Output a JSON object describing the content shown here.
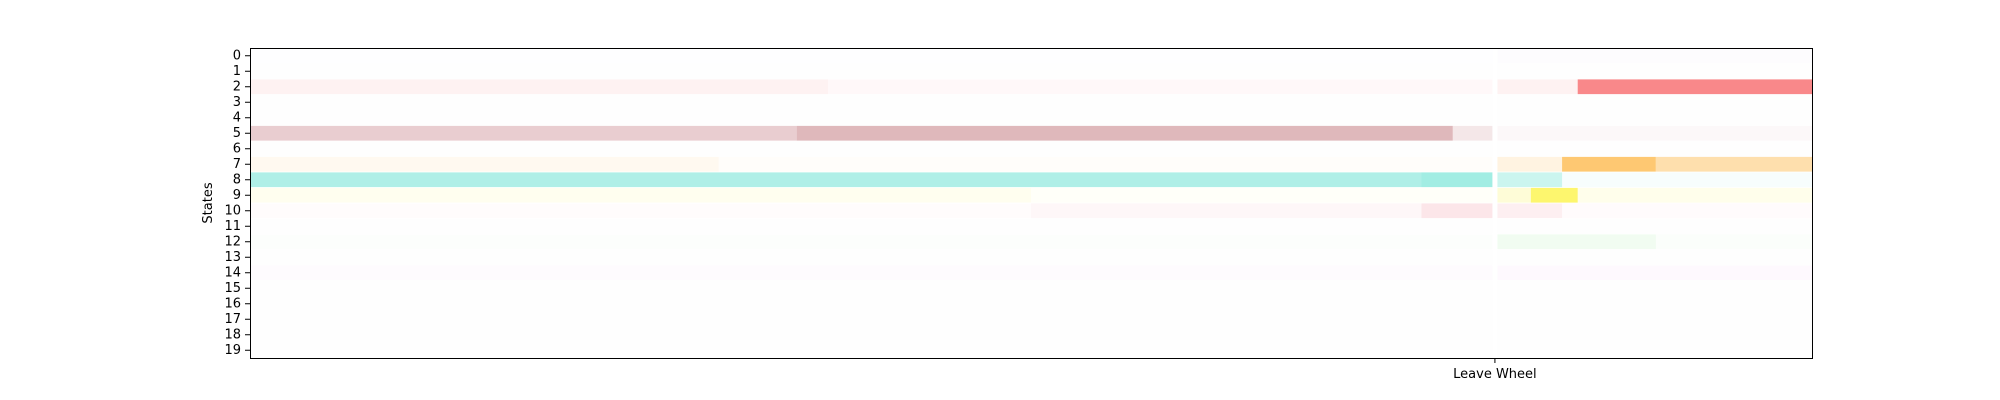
{
  "chart_data": {
    "type": "heatmap",
    "title": "",
    "xlabel": "",
    "ylabel": "States",
    "y_categories": [
      "0",
      "1",
      "2",
      "3",
      "4",
      "5",
      "6",
      "7",
      "8",
      "9",
      "10",
      "11",
      "12",
      "13",
      "14",
      "15",
      "16",
      "17",
      "18",
      "19"
    ],
    "x_ticks": [
      {
        "label": "Leave Wheel",
        "position": 0.797
      }
    ],
    "x_range": [
      0,
      1
    ],
    "event_line": {
      "label": "Leave Wheel",
      "position": 0.797,
      "color": "#ffffff"
    },
    "grid": false,
    "legend": "none",
    "rows": [
      {
        "state": 0,
        "color": "#d8d0ee",
        "segments": [
          {
            "start": 0.0,
            "end": 0.797,
            "intensity": 0.02
          },
          {
            "start": 0.797,
            "end": 1.0,
            "intensity": 0.06
          }
        ]
      },
      {
        "state": 1,
        "color": "#e0e0e0",
        "segments": [
          {
            "start": 0.0,
            "end": 1.0,
            "intensity": 0.02
          }
        ]
      },
      {
        "state": 2,
        "color": "#f87e80",
        "segments": [
          {
            "start": 0.0,
            "end": 0.37,
            "intensity": 0.1
          },
          {
            "start": 0.37,
            "end": 0.797,
            "intensity": 0.05
          },
          {
            "start": 0.797,
            "end": 0.85,
            "intensity": 0.1
          },
          {
            "start": 0.85,
            "end": 1.0,
            "intensity": 0.92
          }
        ]
      },
      {
        "state": 3,
        "color": "#e0e0e0",
        "segments": [
          {
            "start": 0.0,
            "end": 1.0,
            "intensity": 0.02
          }
        ]
      },
      {
        "state": 4,
        "color": "#e0e0e0",
        "segments": [
          {
            "start": 0.0,
            "end": 1.0,
            "intensity": 0.02
          }
        ]
      },
      {
        "state": 5,
        "color": "#d4a0a4",
        "segments": [
          {
            "start": 0.0,
            "end": 0.35,
            "intensity": 0.52
          },
          {
            "start": 0.35,
            "end": 0.77,
            "intensity": 0.75
          },
          {
            "start": 0.77,
            "end": 0.797,
            "intensity": 0.25
          },
          {
            "start": 0.797,
            "end": 1.0,
            "intensity": 0.07
          }
        ]
      },
      {
        "state": 6,
        "color": "#e0e0e0",
        "segments": [
          {
            "start": 0.0,
            "end": 1.0,
            "intensity": 0.02
          }
        ]
      },
      {
        "state": 7,
        "color": "#fec56a",
        "segments": [
          {
            "start": 0.0,
            "end": 0.3,
            "intensity": 0.1
          },
          {
            "start": 0.3,
            "end": 0.797,
            "intensity": 0.03
          },
          {
            "start": 0.797,
            "end": 0.84,
            "intensity": 0.2
          },
          {
            "start": 0.84,
            "end": 0.9,
            "intensity": 0.95
          },
          {
            "start": 0.9,
            "end": 1.0,
            "intensity": 0.55
          }
        ]
      },
      {
        "state": 8,
        "color": "#98ebe0",
        "segments": [
          {
            "start": 0.0,
            "end": 0.75,
            "intensity": 0.78
          },
          {
            "start": 0.75,
            "end": 0.797,
            "intensity": 0.9
          },
          {
            "start": 0.797,
            "end": 0.84,
            "intensity": 0.5
          },
          {
            "start": 0.84,
            "end": 1.0,
            "intensity": 0.08
          }
        ]
      },
      {
        "state": 9,
        "color": "#fdf55e",
        "segments": [
          {
            "start": 0.0,
            "end": 0.5,
            "intensity": 0.1
          },
          {
            "start": 0.5,
            "end": 0.797,
            "intensity": 0.04
          },
          {
            "start": 0.797,
            "end": 0.82,
            "intensity": 0.25
          },
          {
            "start": 0.82,
            "end": 0.85,
            "intensity": 0.9
          },
          {
            "start": 0.85,
            "end": 1.0,
            "intensity": 0.12
          }
        ]
      },
      {
        "state": 10,
        "color": "#f8c0c8",
        "segments": [
          {
            "start": 0.0,
            "end": 0.5,
            "intensity": 0.05
          },
          {
            "start": 0.5,
            "end": 0.75,
            "intensity": 0.12
          },
          {
            "start": 0.75,
            "end": 0.797,
            "intensity": 0.4
          },
          {
            "start": 0.797,
            "end": 0.84,
            "intensity": 0.25
          },
          {
            "start": 0.84,
            "end": 1.0,
            "intensity": 0.06
          }
        ]
      },
      {
        "state": 11,
        "color": "#e0e0e0",
        "segments": [
          {
            "start": 0.0,
            "end": 1.0,
            "intensity": 0.03
          }
        ]
      },
      {
        "state": 12,
        "color": "#a0eba0",
        "segments": [
          {
            "start": 0.0,
            "end": 0.797,
            "intensity": 0.03
          },
          {
            "start": 0.797,
            "end": 0.9,
            "intensity": 0.15
          },
          {
            "start": 0.9,
            "end": 1.0,
            "intensity": 0.04
          }
        ]
      },
      {
        "state": 13,
        "color": "#e0e0e0",
        "segments": [
          {
            "start": 0.0,
            "end": 1.0,
            "intensity": 0.02
          }
        ]
      },
      {
        "state": 14,
        "color": "#f0b8f0",
        "segments": [
          {
            "start": 0.0,
            "end": 0.797,
            "intensity": 0.06
          },
          {
            "start": 0.797,
            "end": 1.0,
            "intensity": 0.08
          }
        ]
      },
      {
        "state": 15,
        "color": "#e0e0e0",
        "segments": [
          {
            "start": 0.0,
            "end": 1.0,
            "intensity": 0.02
          }
        ]
      },
      {
        "state": 16,
        "color": "#e0e0e0",
        "segments": [
          {
            "start": 0.0,
            "end": 1.0,
            "intensity": 0.02
          }
        ]
      },
      {
        "state": 17,
        "color": "#e0e0e0",
        "segments": [
          {
            "start": 0.0,
            "end": 1.0,
            "intensity": 0.02
          }
        ]
      },
      {
        "state": 18,
        "color": "#e0e0e0",
        "segments": [
          {
            "start": 0.0,
            "end": 1.0,
            "intensity": 0.02
          }
        ]
      },
      {
        "state": 19,
        "color": "#e0e0e0",
        "segments": [
          {
            "start": 0.0,
            "end": 1.0,
            "intensity": 0.02
          }
        ]
      }
    ]
  }
}
